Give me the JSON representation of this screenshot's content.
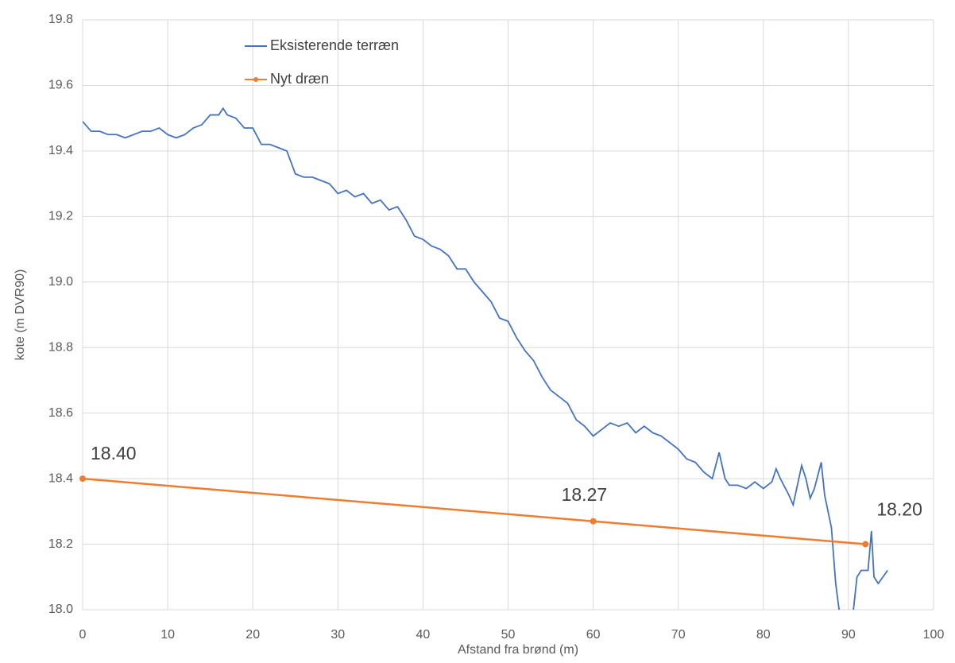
{
  "chart_data": {
    "type": "line",
    "xlabel": "Afstand fra brønd (m)",
    "ylabel": "kote (m DVR90)",
    "xlim": [
      0,
      100
    ],
    "xticks": [
      0,
      10,
      20,
      30,
      40,
      50,
      60,
      70,
      80,
      90,
      100
    ],
    "ylim": [
      18.0,
      19.8
    ],
    "yticks": [
      {
        "value": 18.0,
        "label": "18.0"
      },
      18.2,
      18.4,
      18.6,
      18.8,
      {
        "value": 19.0,
        "label": "19.0"
      },
      19.2,
      19.4,
      19.6,
      19.8
    ],
    "grid": true,
    "legend": "top-left",
    "series": [
      {
        "name": "Eksisterende terræn",
        "color": "#4472c4",
        "x": [
          0,
          1,
          2,
          3,
          4,
          5,
          6,
          7,
          8,
          9,
          10,
          11,
          12,
          13,
          14,
          15,
          16,
          16.5,
          17,
          18,
          19,
          20,
          21,
          22,
          23,
          24,
          25,
          26,
          27,
          28,
          29,
          30,
          31,
          32,
          33,
          34,
          35,
          36,
          37,
          38,
          39,
          40,
          41,
          42,
          43,
          44,
          45,
          46,
          47,
          48,
          49,
          50,
          51,
          52,
          53,
          54,
          55,
          56,
          57,
          58,
          59,
          60,
          61,
          62,
          63,
          64,
          65,
          66,
          67,
          68,
          69,
          70,
          71,
          72,
          73,
          74,
          74.8,
          75.5,
          76,
          77,
          78,
          79,
          80,
          81,
          81.5,
          82,
          83,
          83.5,
          84,
          84.5,
          85,
          85.5,
          86,
          86.8,
          87.2,
          88,
          88.5,
          89,
          89.5,
          90.5,
          91,
          91.5,
          92.3,
          92.7,
          93,
          93.5,
          94.6
        ],
        "values": [
          19.49,
          19.46,
          19.46,
          19.45,
          19.45,
          19.44,
          19.45,
          19.46,
          19.46,
          19.47,
          19.45,
          19.44,
          19.45,
          19.47,
          19.48,
          19.51,
          19.51,
          19.53,
          19.51,
          19.5,
          19.47,
          19.47,
          19.42,
          19.42,
          19.41,
          19.4,
          19.33,
          19.32,
          19.32,
          19.31,
          19.3,
          19.27,
          19.28,
          19.26,
          19.27,
          19.24,
          19.25,
          19.22,
          19.23,
          19.19,
          19.14,
          19.13,
          19.11,
          19.1,
          19.08,
          19.04,
          19.04,
          19.0,
          18.97,
          18.94,
          18.89,
          18.88,
          18.83,
          18.79,
          18.76,
          18.71,
          18.67,
          18.65,
          18.63,
          18.58,
          18.56,
          18.53,
          18.55,
          18.57,
          18.56,
          18.57,
          18.54,
          18.56,
          18.54,
          18.53,
          18.51,
          18.49,
          18.46,
          18.45,
          18.42,
          18.4,
          18.48,
          18.4,
          18.38,
          18.38,
          18.37,
          18.39,
          18.37,
          18.39,
          18.43,
          18.4,
          18.35,
          18.32,
          18.38,
          18.44,
          18.4,
          18.34,
          18.37,
          18.45,
          18.35,
          18.25,
          18.08,
          17.98,
          17.97,
          17.98,
          18.1,
          18.12,
          18.12,
          18.24,
          18.1,
          18.08,
          18.12
        ]
      },
      {
        "name": "Nyt dræn",
        "color": "#ed7d31",
        "marker": true,
        "x": [
          0,
          60,
          92
        ],
        "values": [
          18.4,
          18.27,
          18.2
        ],
        "value_labels": [
          "18.40",
          "18.27",
          "18.20"
        ]
      }
    ]
  }
}
